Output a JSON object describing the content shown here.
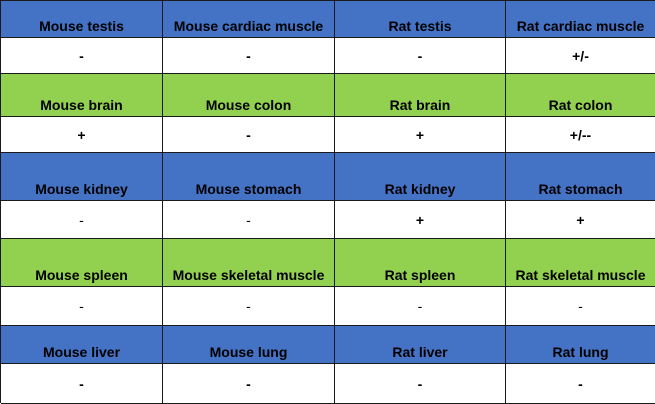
{
  "colors": {
    "blue_header": "#4472C4",
    "green_header": "#92D050",
    "value_row": "#ffffff"
  },
  "table": {
    "rows": [
      {
        "kind": "header",
        "color": "blue",
        "cells": [
          "Mouse testis",
          "Mouse cardiac muscle",
          "Rat testis",
          "Rat cardiac muscle"
        ]
      },
      {
        "kind": "value",
        "cells": [
          "-",
          "-",
          "-",
          "+/-"
        ]
      },
      {
        "kind": "header",
        "color": "green",
        "cells": [
          "Mouse brain",
          "Mouse colon",
          "Rat brain",
          "Rat colon"
        ]
      },
      {
        "kind": "value",
        "cells": [
          "+",
          "-",
          "+",
          "+/--"
        ]
      },
      {
        "kind": "header",
        "color": "blue",
        "cells": [
          "Mouse kidney",
          "Mouse stomach",
          "Rat kidney",
          "Rat stomach"
        ]
      },
      {
        "kind": "value",
        "cells": [
          "-",
          "-",
          "+",
          "+"
        ]
      },
      {
        "kind": "header",
        "color": "green",
        "cells": [
          "Mouse spleen",
          "Mouse skeletal muscle",
          "Rat spleen",
          "Rat skeletal muscle"
        ]
      },
      {
        "kind": "value",
        "cells": [
          "-",
          "-",
          "-",
          "-"
        ]
      },
      {
        "kind": "header",
        "color": "blue",
        "cells": [
          "Mouse liver",
          "Mouse lung",
          "Rat liver",
          "Rat lung"
        ]
      },
      {
        "kind": "value",
        "cells": [
          "-",
          "-",
          "-",
          "-"
        ]
      }
    ]
  }
}
